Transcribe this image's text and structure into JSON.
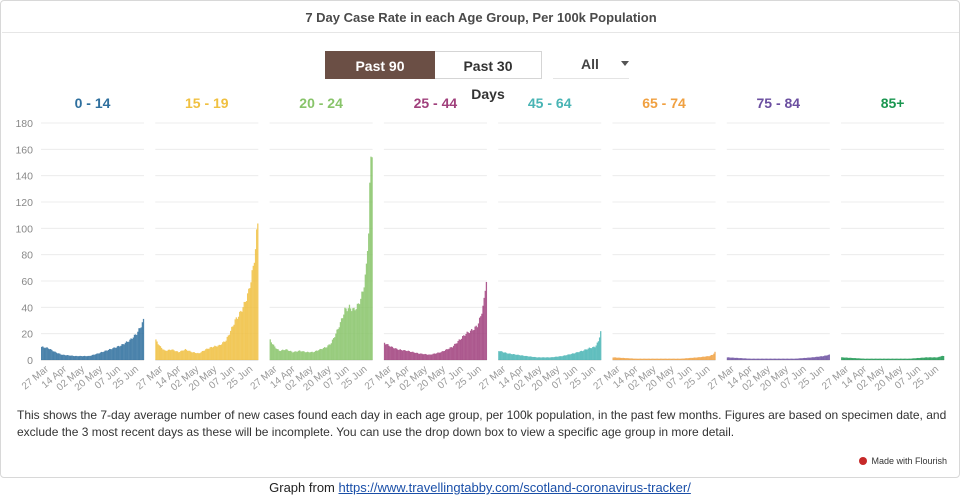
{
  "header": {
    "title": "7 Day Case Rate in each Age Group, Per 100k Population"
  },
  "toggle": {
    "option_90": "Past 90 Days",
    "option_30": "Past 30 Days"
  },
  "dropdown": {
    "selected": "All"
  },
  "description": "This shows the 7-day average number of new cases found each day in each age group, per 100k population, in the past few months. Figures are based on specimen date, and exclude the 3 most recent days as these will be incomplete. You can use the drop down box to view a specific age group in more detail.",
  "badge": {
    "label": "Made with Flourish"
  },
  "footer": {
    "prefix": "Graph from",
    "link_text": "https://www.travellingtabby.com/scotland-coronavirus-tracker/"
  },
  "chart_data": {
    "type": "bar",
    "ylim": [
      0,
      180
    ],
    "yticks": [
      0,
      20,
      40,
      60,
      80,
      100,
      120,
      140,
      160,
      180
    ],
    "xticks": [
      "27 Mar",
      "14 Apr",
      "02 May",
      "20 May",
      "07 Jun",
      "25 Jun"
    ],
    "grid": true,
    "series": [
      {
        "name": "0 - 14",
        "color": "#2e6f9e",
        "anchors": [
          [
            0,
            10
          ],
          [
            6,
            9
          ],
          [
            12,
            6
          ],
          [
            18,
            4
          ],
          [
            30,
            3
          ],
          [
            42,
            3
          ],
          [
            50,
            5
          ],
          [
            60,
            8
          ],
          [
            70,
            11
          ],
          [
            78,
            15
          ],
          [
            84,
            20
          ],
          [
            88,
            26
          ],
          [
            90,
            30
          ]
        ]
      },
      {
        "name": "15 - 19",
        "color": "#f0c040",
        "anchors": [
          [
            0,
            15
          ],
          [
            4,
            10
          ],
          [
            8,
            7
          ],
          [
            14,
            8
          ],
          [
            20,
            6
          ],
          [
            26,
            8
          ],
          [
            32,
            6
          ],
          [
            38,
            5
          ],
          [
            44,
            8
          ],
          [
            50,
            10
          ],
          [
            56,
            11
          ],
          [
            62,
            15
          ],
          [
            66,
            22
          ],
          [
            70,
            30
          ],
          [
            74,
            35
          ],
          [
            78,
            42
          ],
          [
            82,
            52
          ],
          [
            86,
            70
          ],
          [
            88,
            85
          ],
          [
            90,
            104
          ]
        ]
      },
      {
        "name": "20 - 24",
        "color": "#88c46a",
        "anchors": [
          [
            0,
            15
          ],
          [
            4,
            10
          ],
          [
            8,
            7
          ],
          [
            14,
            8
          ],
          [
            20,
            6
          ],
          [
            26,
            7
          ],
          [
            32,
            6
          ],
          [
            38,
            6
          ],
          [
            44,
            8
          ],
          [
            50,
            10
          ],
          [
            54,
            13
          ],
          [
            58,
            20
          ],
          [
            62,
            28
          ],
          [
            66,
            38
          ],
          [
            70,
            40
          ],
          [
            74,
            38
          ],
          [
            78,
            42
          ],
          [
            82,
            52
          ],
          [
            85,
            70
          ],
          [
            87,
            100
          ],
          [
            88,
            130
          ],
          [
            89,
            150
          ],
          [
            90,
            161
          ]
        ]
      },
      {
        "name": "25 - 44",
        "color": "#a0407c",
        "anchors": [
          [
            0,
            13
          ],
          [
            6,
            10
          ],
          [
            12,
            8
          ],
          [
            20,
            7
          ],
          [
            30,
            5
          ],
          [
            40,
            4
          ],
          [
            50,
            6
          ],
          [
            60,
            10
          ],
          [
            66,
            15
          ],
          [
            72,
            20
          ],
          [
            78,
            23
          ],
          [
            82,
            26
          ],
          [
            85,
            33
          ],
          [
            88,
            45
          ],
          [
            90,
            62
          ]
        ]
      },
      {
        "name": "45 - 64",
        "color": "#48b4b4",
        "anchors": [
          [
            0,
            7
          ],
          [
            8,
            5
          ],
          [
            16,
            4
          ],
          [
            24,
            3
          ],
          [
            34,
            2
          ],
          [
            46,
            2
          ],
          [
            56,
            3
          ],
          [
            66,
            5
          ],
          [
            74,
            7
          ],
          [
            80,
            9
          ],
          [
            85,
            10
          ],
          [
            88,
            14
          ],
          [
            90,
            22
          ]
        ]
      },
      {
        "name": "65 - 74",
        "color": "#f0a040",
        "anchors": [
          [
            0,
            2
          ],
          [
            20,
            1
          ],
          [
            40,
            1
          ],
          [
            60,
            1
          ],
          [
            75,
            2
          ],
          [
            85,
            3
          ],
          [
            88,
            4
          ],
          [
            90,
            6
          ]
        ]
      },
      {
        "name": "75 - 84",
        "color": "#6b4fa0",
        "anchors": [
          [
            0,
            2
          ],
          [
            20,
            1
          ],
          [
            40,
            1
          ],
          [
            60,
            1
          ],
          [
            75,
            2
          ],
          [
            85,
            3
          ],
          [
            90,
            4
          ]
        ]
      },
      {
        "name": "85+",
        "color": "#1a9650",
        "anchors": [
          [
            0,
            2
          ],
          [
            20,
            1
          ],
          [
            40,
            1
          ],
          [
            60,
            1
          ],
          [
            75,
            2
          ],
          [
            85,
            2
          ],
          [
            88,
            3
          ],
          [
            90,
            3
          ]
        ]
      }
    ]
  }
}
